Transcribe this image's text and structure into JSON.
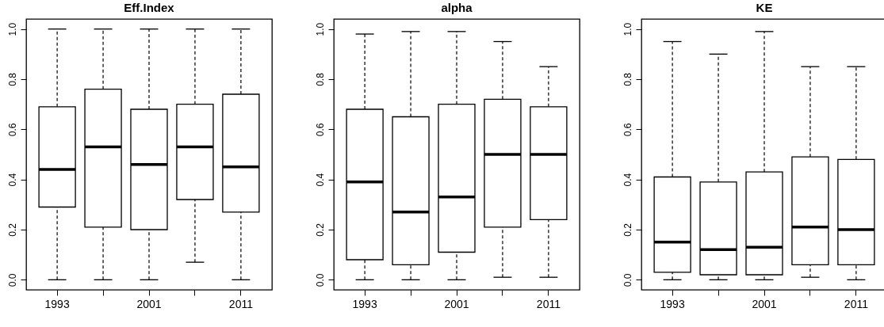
{
  "chart_data": [
    {
      "type": "box",
      "title": "Eff.Index",
      "categories": [
        "1993",
        null,
        "2001",
        null,
        "2011"
      ],
      "ylim": [
        -0.04,
        1.04
      ],
      "yticks": [
        {
          "value": 0,
          "label": "0.0"
        },
        {
          "value": 0.2,
          "label": "0.2"
        },
        {
          "value": 0.4,
          "label": "0.4"
        },
        {
          "value": 0.6,
          "label": "0.6"
        },
        {
          "value": 0.8,
          "label": "0.8"
        },
        {
          "value": 1,
          "label": "1.0"
        }
      ],
      "boxes": [
        {
          "low": 0,
          "q1": 0.29,
          "median": 0.44,
          "q3": 0.69,
          "high": 1
        },
        {
          "low": 0,
          "q1": 0.21,
          "median": 0.53,
          "q3": 0.76,
          "high": 1
        },
        {
          "low": 0,
          "q1": 0.2,
          "median": 0.46,
          "q3": 0.68,
          "high": 1
        },
        {
          "low": 0.07,
          "q1": 0.32,
          "median": 0.53,
          "q3": 0.7,
          "high": 1
        },
        {
          "low": 0,
          "q1": 0.27,
          "median": 0.45,
          "q3": 0.74,
          "high": 1
        }
      ]
    },
    {
      "type": "box",
      "title": "alpha",
      "categories": [
        "1993",
        null,
        "2001",
        null,
        "2011"
      ],
      "ylim": [
        -0.04,
        1.04
      ],
      "yticks": [
        {
          "value": 0,
          "label": "0.0"
        },
        {
          "value": 0.2,
          "label": "0.2"
        },
        {
          "value": 0.4,
          "label": "0.4"
        },
        {
          "value": 0.6,
          "label": "0.6"
        },
        {
          "value": 0.8,
          "label": "0.8"
        },
        {
          "value": 1,
          "label": "1.0"
        }
      ],
      "boxes": [
        {
          "low": 0,
          "q1": 0.08,
          "median": 0.39,
          "q3": 0.68,
          "high": 0.98
        },
        {
          "low": 0,
          "q1": 0.06,
          "median": 0.27,
          "q3": 0.65,
          "high": 0.99
        },
        {
          "low": 0,
          "q1": 0.11,
          "median": 0.33,
          "q3": 0.7,
          "high": 0.99
        },
        {
          "low": 0.01,
          "q1": 0.21,
          "median": 0.5,
          "q3": 0.72,
          "high": 0.95
        },
        {
          "low": 0.01,
          "q1": 0.24,
          "median": 0.5,
          "q3": 0.69,
          "high": 0.85
        }
      ]
    },
    {
      "type": "box",
      "title": "KE",
      "categories": [
        "1993",
        null,
        "2001",
        null,
        "2011"
      ],
      "ylim": [
        -0.04,
        1.04
      ],
      "yticks": [
        {
          "value": 0,
          "label": "0.0"
        },
        {
          "value": 0.2,
          "label": "0.2"
        },
        {
          "value": 0.4,
          "label": "0.4"
        },
        {
          "value": 0.6,
          "label": "0.6"
        },
        {
          "value": 0.8,
          "label": "0.8"
        },
        {
          "value": 1,
          "label": "1.0"
        }
      ],
      "boxes": [
        {
          "low": 0,
          "q1": 0.03,
          "median": 0.15,
          "q3": 0.41,
          "high": 0.95
        },
        {
          "low": 0,
          "q1": 0.02,
          "median": 0.12,
          "q3": 0.39,
          "high": 0.9
        },
        {
          "low": 0,
          "q1": 0.02,
          "median": 0.13,
          "q3": 0.43,
          "high": 0.99
        },
        {
          "low": 0.01,
          "q1": 0.06,
          "median": 0.21,
          "q3": 0.49,
          "high": 0.85
        },
        {
          "low": 0,
          "q1": 0.06,
          "median": 0.2,
          "q3": 0.48,
          "high": 0.85
        }
      ]
    }
  ]
}
